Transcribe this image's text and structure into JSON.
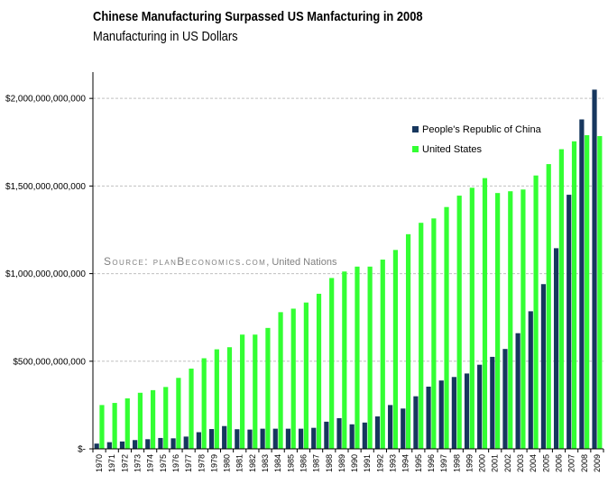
{
  "chart_data": {
    "type": "bar",
    "title": "Chinese Manufacturing Surpassed US Manfacturing in 2008",
    "subtitle": "Manufacturing in US Dollars",
    "source_label": "Source: planBeconomics.com",
    "source_extra": ", United Nations",
    "categories": [
      "1970",
      "1971",
      "1972",
      "1973",
      "1974",
      "1975",
      "1976",
      "1977",
      "1978",
      "1979",
      "1980",
      "1981",
      "1982",
      "1983",
      "1984",
      "1985",
      "1986",
      "1987",
      "1988",
      "1989",
      "1990",
      "1991",
      "1992",
      "1993",
      "1994",
      "1995",
      "1996",
      "1997",
      "1998",
      "1999",
      "2000",
      "2001",
      "2002",
      "2003",
      "2004",
      "2005",
      "2006",
      "2007",
      "2008",
      "2009"
    ],
    "series": [
      {
        "name": "People's Republic of China",
        "color": "#17375e",
        "values": [
          30000000000,
          38000000000,
          42000000000,
          50000000000,
          55000000000,
          62000000000,
          60000000000,
          70000000000,
          95000000000,
          113000000000,
          130000000000,
          112000000000,
          110000000000,
          115000000000,
          115000000000,
          115000000000,
          115000000000,
          120000000000,
          155000000000,
          175000000000,
          140000000000,
          150000000000,
          185000000000,
          250000000000,
          230000000000,
          300000000000,
          355000000000,
          390000000000,
          410000000000,
          430000000000,
          480000000000,
          525000000000,
          570000000000,
          660000000000,
          785000000000,
          940000000000,
          1145000000000,
          1450000000000,
          1880000000000,
          2050000000000
        ]
      },
      {
        "name": "United States",
        "color": "#33ff33",
        "values": [
          250000000000,
          262000000000,
          288000000000,
          320000000000,
          335000000000,
          353000000000,
          405000000000,
          458000000000,
          517000000000,
          568000000000,
          580000000000,
          652000000000,
          652000000000,
          690000000000,
          780000000000,
          800000000000,
          835000000000,
          885000000000,
          975000000000,
          1012000000000,
          1040000000000,
          1040000000000,
          1080000000000,
          1135000000000,
          1225000000000,
          1290000000000,
          1315000000000,
          1380000000000,
          1445000000000,
          1490000000000,
          1545000000000,
          1460000000000,
          1470000000000,
          1480000000000,
          1560000000000,
          1625000000000,
          1710000000000,
          1755000000000,
          1790000000000,
          1785000000000
        ]
      }
    ],
    "y_ticks": [
      {
        "value": 0,
        "label": "$-"
      },
      {
        "value": 500000000000,
        "label": "$500,000,000,000"
      },
      {
        "value": 1000000000000,
        "label": "$1,000,000,000,000"
      },
      {
        "value": 1500000000000,
        "label": "$1,500,000,000,000"
      },
      {
        "value": 2000000000000,
        "label": "$2,000,000,000,000"
      }
    ],
    "ylim": [
      0,
      2150000000000
    ],
    "grid": true,
    "legend_position": "top-right"
  }
}
